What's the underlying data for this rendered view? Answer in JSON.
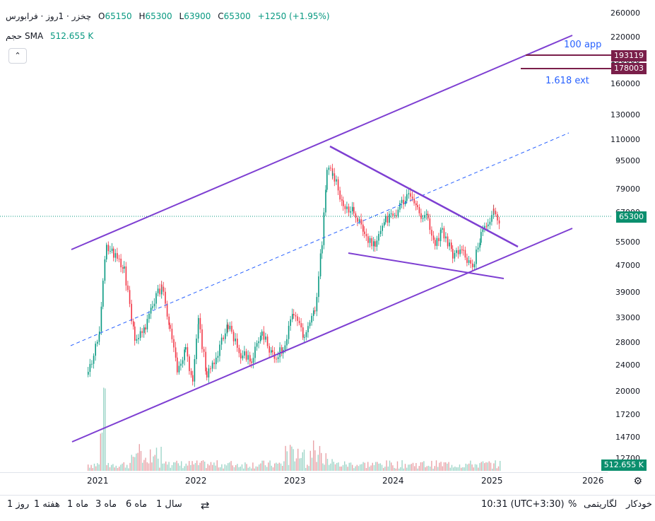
{
  "legend": {
    "symbol_title": "چخزر · 1روز · فرابورس",
    "open_label": "O",
    "open": "65150",
    "high_label": "H",
    "high": "65300",
    "low_label": "L",
    "low": "63900",
    "close_label": "C",
    "close": "65300",
    "change": "+1250 (+1.95%)",
    "volume_label": "حجم SMA",
    "volume_value": "512.655 K",
    "collapse_icon": "chevron-up-icon"
  },
  "price_axis": {
    "ticks": [
      "260000",
      "220000",
      "190000",
      "160000",
      "130000",
      "110000",
      "95000",
      "79000",
      "67000",
      "55000",
      "47000",
      "39000",
      "33000",
      "28000",
      "24000",
      "20000",
      "17200",
      "14700",
      "12700"
    ],
    "tags": [
      {
        "value": "193119",
        "color": "#7a1f4a"
      },
      {
        "value": "178003",
        "color": "#7a1f4a"
      },
      {
        "value": "65300",
        "color": "#0b8f6e"
      },
      {
        "value": "512.655 K",
        "color": "#0b8f6e"
      }
    ]
  },
  "annotations": {
    "app": "100 app",
    "ext": "1.618 ext"
  },
  "time_axis": {
    "labels": [
      "2021",
      "2022",
      "2023",
      "2024",
      "2025",
      "2026"
    ],
    "settings_icon": "gear-icon"
  },
  "bottom_bar": {
    "ranges": [
      "1 روز",
      "1 هفته",
      "1 ماه",
      "3 ماه",
      "6 ماه",
      "1 سال"
    ],
    "compare_icon": "date-range-icon",
    "time": "10:31 (UTC+3:30)",
    "percent": "%",
    "log": "لگاریتمی",
    "auto": "خودکار"
  },
  "colors": {
    "up": "#089981",
    "down": "#f23645",
    "trendline": "#7e3fd2",
    "dashed": "#2962ff"
  }
}
